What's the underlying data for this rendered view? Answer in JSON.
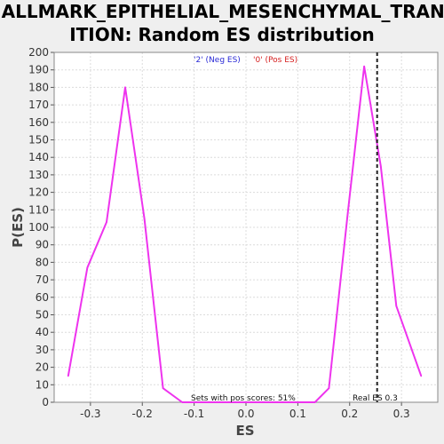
{
  "chart_data": {
    "type": "line",
    "title_line1": "HALLMARK_EPITHELIAL_MESENCHYMAL_TRANS",
    "title_line2": "ITION: Random ES distribution",
    "xlabel": "ES",
    "ylabel": "P(ES)",
    "xlim": [
      -0.37,
      0.37
    ],
    "ylim": [
      0,
      200
    ],
    "xticks": [
      -0.3,
      -0.2,
      -0.1,
      0.0,
      0.1,
      0.2,
      0.3
    ],
    "xtick_labels": [
      "-0.3",
      "-0.2",
      "-0.1",
      "0.0",
      "0.1",
      "0.2",
      "0.3"
    ],
    "yticks": [
      0,
      10,
      20,
      30,
      40,
      50,
      60,
      70,
      80,
      90,
      100,
      110,
      120,
      130,
      140,
      150,
      160,
      170,
      180,
      190,
      200
    ],
    "ytick_labels": [
      "0",
      "10",
      "20",
      "30",
      "40",
      "50",
      "60",
      "70",
      "80",
      "90",
      "100",
      "110",
      "120",
      "130",
      "140",
      "150",
      "160",
      "170",
      "180",
      "190",
      "200"
    ],
    "grid": true,
    "legend": [
      {
        "label": "'2' (Neg ES)",
        "color": "#2a2ad6"
      },
      {
        "label": "'0' (Pos ES)",
        "color": "#d62020"
      }
    ],
    "series": [
      {
        "color": "#ee33ee",
        "x": [
          -0.343,
          -0.306,
          -0.269,
          -0.233,
          -0.196,
          -0.16,
          -0.123,
          -0.086,
          -0.05,
          -0.013,
          0.024,
          0.06,
          0.097,
          0.133,
          0.16,
          0.196,
          0.228,
          0.26,
          0.29,
          0.32,
          0.338
        ],
        "y": [
          15,
          77,
          103,
          180,
          105,
          8,
          0,
          0,
          0,
          0,
          0,
          0,
          0,
          0,
          8,
          107,
          192,
          135,
          55,
          30,
          15
        ]
      }
    ],
    "real_es": 0.253,
    "real_es_label": "Real ES 0.3",
    "annotation": "Sets with pos scores: 51%"
  }
}
